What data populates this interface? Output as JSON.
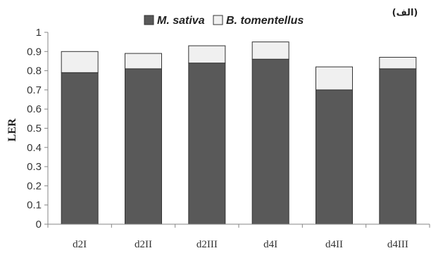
{
  "chart_data": {
    "type": "bar",
    "stacked": true,
    "panel_label": "(الف)",
    "ylabel": "LER",
    "xlabel": "",
    "ylim": [
      0,
      1
    ],
    "yticks": [
      "0",
      "0.1",
      "0.2",
      "0.3",
      "0.4",
      "0.5",
      "0.6",
      "0.7",
      "0.8",
      "0.9",
      "1"
    ],
    "categories": [
      "d2I",
      "d2II",
      "d2III",
      "d4I",
      "d4II",
      "d4III"
    ],
    "series": [
      {
        "name": "M. sativa",
        "values": [
          0.79,
          0.81,
          0.84,
          0.86,
          0.7,
          0.81
        ],
        "color": "#595959"
      },
      {
        "name": "B. tomentellus",
        "values": [
          0.11,
          0.08,
          0.09,
          0.09,
          0.12,
          0.06
        ],
        "color": "#f0f0f0"
      }
    ],
    "legend_position": "top-center",
    "grid": false
  }
}
